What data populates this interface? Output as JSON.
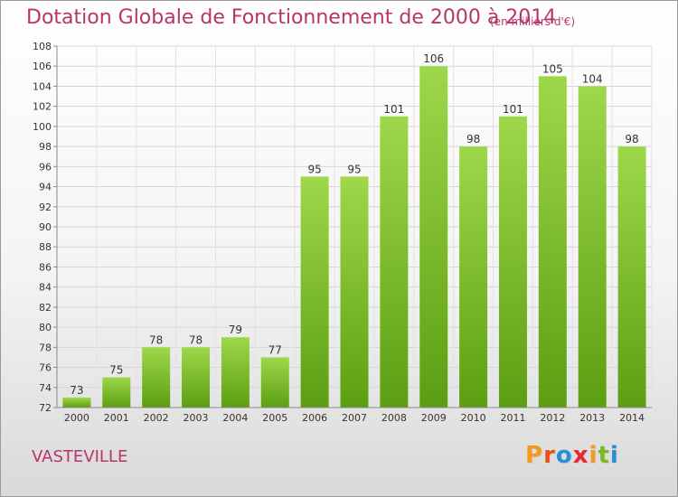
{
  "header": {
    "title": "Dotation Globale de Fonctionnement de 2000 à 2014",
    "subtitle": "(en milliers d'€)"
  },
  "footer": {
    "town": "VASTEVILLE",
    "logo_text": "Proxiti",
    "logo_colors": [
      "#f39a1e",
      "#e94e1b",
      "#2b8fd6",
      "#e6282e",
      "#f39a1e",
      "#7ab828",
      "#2b8fd6"
    ]
  },
  "chart_data": {
    "type": "bar",
    "categories": [
      "2000",
      "2001",
      "2002",
      "2003",
      "2004",
      "2005",
      "2006",
      "2007",
      "2008",
      "2009",
      "2010",
      "2011",
      "2012",
      "2013",
      "2014"
    ],
    "values": [
      73,
      75,
      78,
      78,
      79,
      77,
      95,
      95,
      101,
      106,
      98,
      101,
      105,
      104,
      98
    ],
    "title": "Dotation Globale de Fonctionnement de 2000 à 2014",
    "subtitle": "(en milliers d'€)",
    "xlabel": "",
    "ylabel": "",
    "ylim": [
      72,
      108
    ],
    "yticks": [
      72,
      74,
      76,
      78,
      80,
      82,
      84,
      86,
      88,
      90,
      92,
      94,
      96,
      98,
      100,
      102,
      104,
      106,
      108
    ],
    "grid": true,
    "data_labels": true,
    "bar_color_top": "#9ed84a",
    "bar_color_bottom": "#5c9e12"
  }
}
